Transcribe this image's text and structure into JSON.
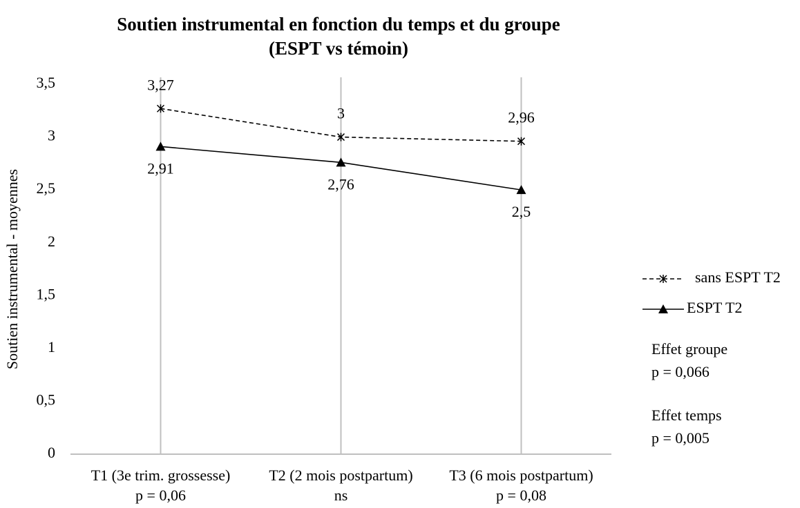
{
  "chart_data": {
    "type": "line",
    "title": "Soutien instrumental en fonction du temps et du groupe",
    "subtitle": "(ESPT vs témoin)",
    "y_label": "Soutien instrumental - moyennes",
    "categories": [
      "T1 (3e trim. grossesse)",
      "T2 (2 mois postpartum)",
      "T3 (6 mois postpartum)"
    ],
    "category_notes": [
      "p = 0,06",
      "ns",
      "p = 0,08"
    ],
    "series": [
      {
        "name": "sans ESPT T2",
        "color": "#000000",
        "dash": true,
        "marker": "star",
        "label_position": "above",
        "values": [
          3.27,
          3,
          2.96
        ],
        "value_labels": [
          "3,27",
          "3",
          "2,96"
        ]
      },
      {
        "name": "ESPT T2",
        "color": "#000000",
        "dash": false,
        "marker": "triangle",
        "label_position": "below",
        "values": [
          2.91,
          2.76,
          2.5
        ],
        "value_labels": [
          "2,91",
          "2,76",
          "2,5"
        ]
      }
    ],
    "ylim": [
      0,
      3.5
    ],
    "yticks": [
      0,
      {
        "value": 0.5,
        "label": "0,5"
      },
      1,
      {
        "value": 1.5,
        "label": "1,5"
      },
      2,
      {
        "value": 2.5,
        "label": "2,5"
      },
      3,
      {
        "value": 3.5,
        "label": "3,5"
      }
    ],
    "x_grid": true,
    "legend_position": "right",
    "annotations": [
      {
        "title": "Effet groupe",
        "text": "p = 0,066"
      },
      {
        "title": "Effet temps",
        "text": "p = 0,005"
      }
    ]
  }
}
